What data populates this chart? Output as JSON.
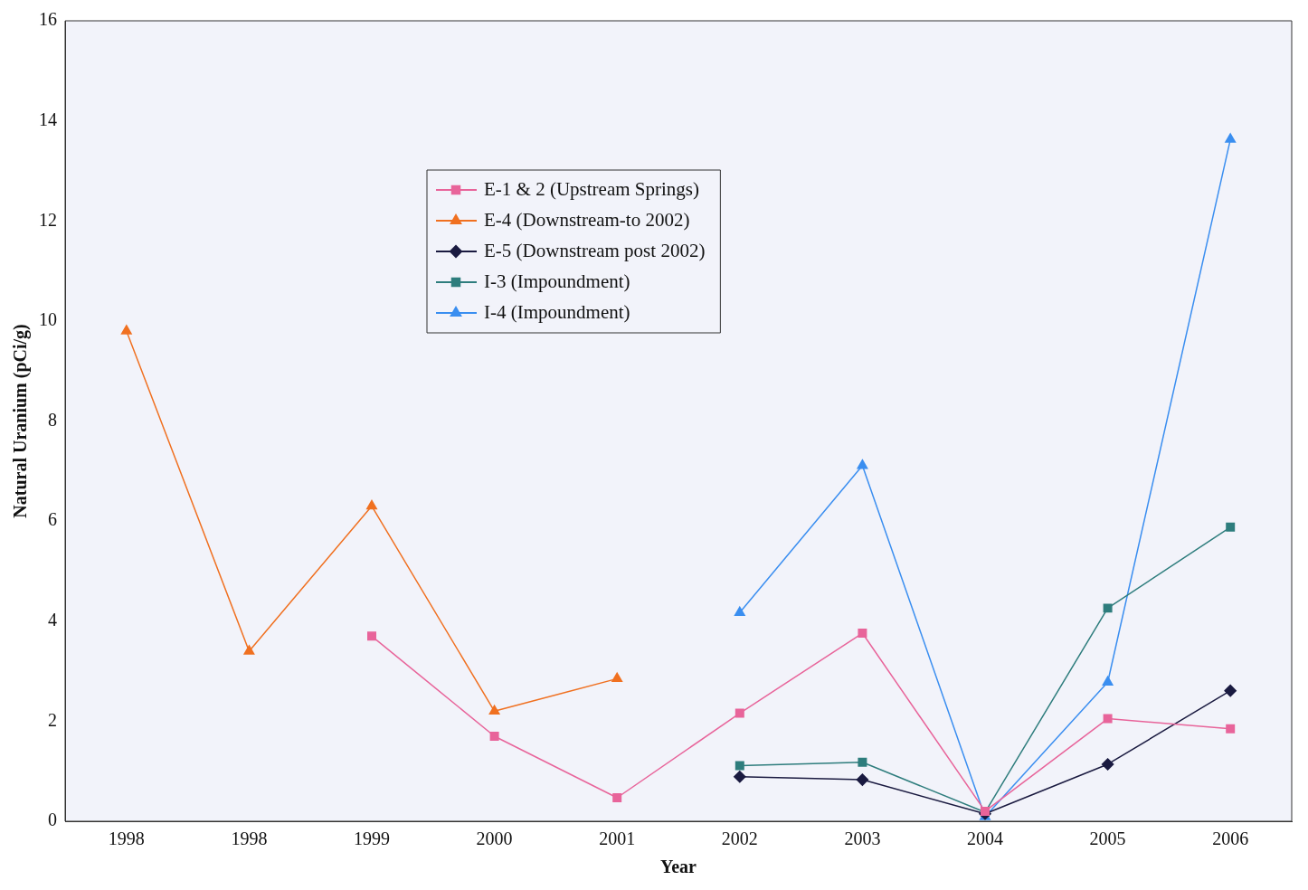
{
  "chart_data": {
    "type": "line",
    "xlabel": "Year",
    "ylabel": "Natural Uranium (pCi/g)",
    "categories": [
      "1998",
      "1998",
      "1999",
      "2000",
      "2001",
      "2002",
      "2003",
      "2004",
      "2005",
      "2006"
    ],
    "ylim": [
      0,
      16
    ],
    "yticks": [
      0,
      2,
      4,
      6,
      8,
      10,
      12,
      14,
      16
    ],
    "grid": false,
    "legend": "top left",
    "series": [
      {
        "name": "E-1 & 2 (Upstream Springs)",
        "color": "#e8649a",
        "marker": "square",
        "values": [
          null,
          null,
          3.7,
          1.7,
          0.47,
          2.16,
          3.76,
          0.2,
          2.05,
          1.85
        ]
      },
      {
        "name": "E-4 (Downstream-to 2002)",
        "color": "#f07020",
        "marker": "triangle",
        "values": [
          9.8,
          3.4,
          6.3,
          2.2,
          2.85,
          null,
          null,
          null,
          null,
          null
        ]
      },
      {
        "name": "E-5 (Downstream post 2002)",
        "color": "#1a1a40",
        "marker": "diamond",
        "values": [
          null,
          null,
          null,
          null,
          null,
          0.89,
          0.83,
          0.15,
          1.14,
          2.61
        ]
      },
      {
        "name": "I-3 (Impoundment)",
        "color": "#2e7d7d",
        "marker": "square",
        "values": [
          null,
          null,
          null,
          null,
          null,
          1.11,
          1.18,
          0.18,
          4.26,
          5.88
        ]
      },
      {
        "name": "I-4 (Impoundment)",
        "color": "#3a8ef0",
        "marker": "triangle",
        "values": [
          null,
          null,
          null,
          null,
          null,
          4.17,
          7.11,
          0.09,
          2.78,
          13.63
        ]
      }
    ]
  }
}
